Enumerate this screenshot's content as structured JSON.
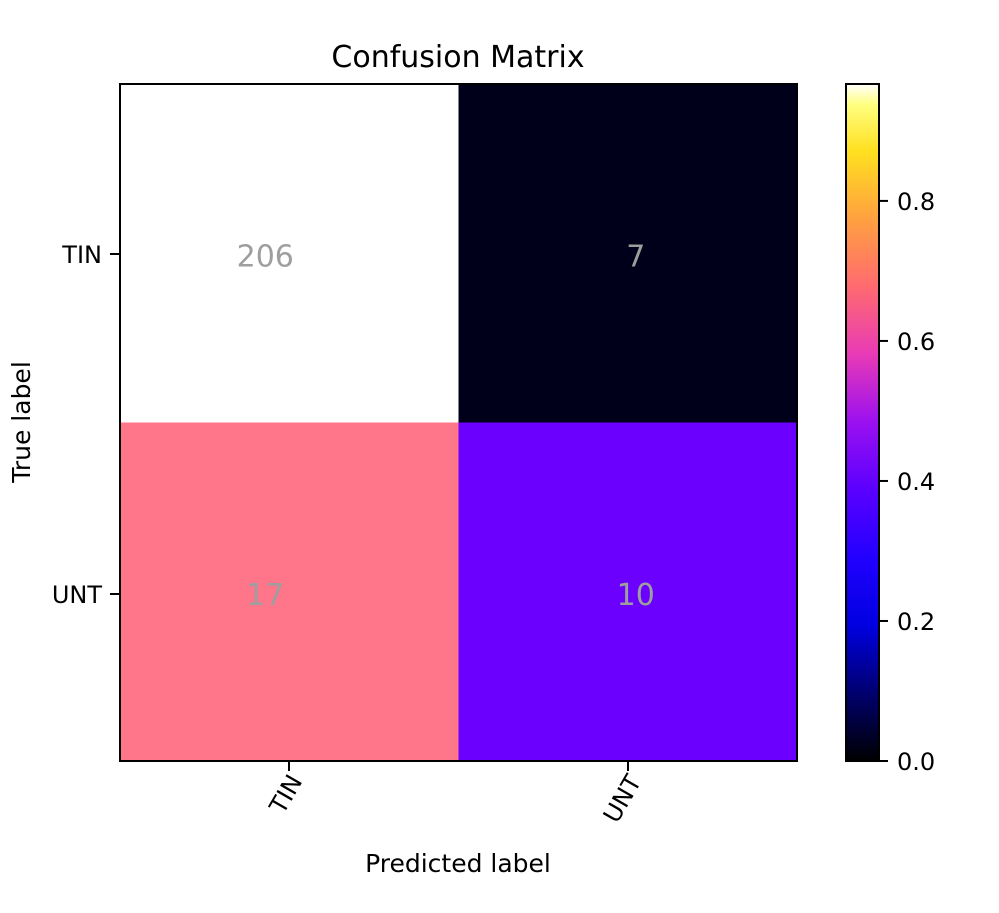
{
  "chart_data": {
    "type": "heatmap",
    "title": "Confusion Matrix",
    "xlabel": "Predicted label",
    "ylabel": "True label",
    "x_categories": [
      "TIN",
      "UNT"
    ],
    "y_categories": [
      "TIN",
      "UNT"
    ],
    "counts": [
      [
        206,
        7
      ],
      [
        17,
        10
      ]
    ],
    "normalized": [
      [
        0.967,
        0.033
      ],
      [
        0.63,
        0.37
      ]
    ],
    "colormap": "gnuplot2",
    "colorbar": {
      "range": [
        0.0,
        0.967
      ],
      "ticks": [
        0.0,
        0.2,
        0.4,
        0.6,
        0.8
      ],
      "tick_labels": [
        "0.0",
        "0.2",
        "0.4",
        "0.6",
        "0.8"
      ]
    },
    "cell_colors": [
      [
        "#ffffff",
        "#00001a"
      ],
      [
        "#ff7589",
        "#6b00ff"
      ]
    ],
    "cell_text_color": "#9e9e9e",
    "x_tick_rotation": -60
  }
}
